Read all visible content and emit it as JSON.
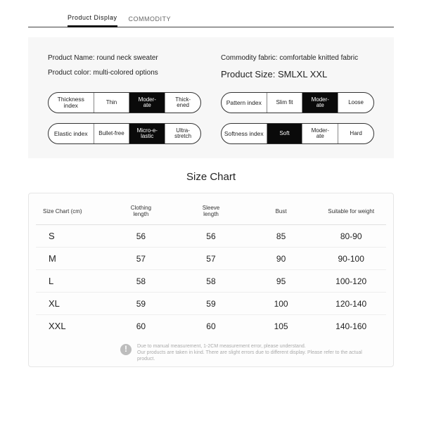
{
  "tabs": {
    "active": "Product Display",
    "inactive": "COMMODITY"
  },
  "info": {
    "name_label": "Product Name:",
    "name_value": "round neck sweater",
    "fabric_label": "Commodity fabric:",
    "fabric_value": "comfortable knitted fabric",
    "color_label": "Product color:",
    "color_value": "multi-colored options",
    "size_label": "Product Size:",
    "size_value": "SMLXL XXL"
  },
  "pills": [
    {
      "label": "Thickness index",
      "opts": [
        "Thin",
        "Moder-\nate",
        "Thick-\nened"
      ],
      "sel": 1
    },
    {
      "label": "Pattern index",
      "opts": [
        "Slim fit",
        "Moder-\nate",
        "Loose"
      ],
      "sel": 1
    },
    {
      "label": "Elastic index",
      "opts": [
        "Bullet-free",
        "Micro-e-\nlastic",
        "Ultra-\nstretch"
      ],
      "sel": 1
    },
    {
      "label": "Softness index",
      "opts": [
        "Soft",
        "Moder-\nate",
        "Hard"
      ],
      "sel": 0
    }
  ],
  "size_chart": {
    "title": "Size Chart",
    "columns": [
      "Size Chart (cm)",
      "Clothing\nlength",
      "Sleeve\nlength",
      "Bust",
      "Suitable for weight"
    ],
    "rows": [
      [
        "S",
        "56",
        "56",
        "85",
        "80-90"
      ],
      [
        "M",
        "57",
        "57",
        "90",
        "90-100"
      ],
      [
        "L",
        "58",
        "58",
        "95",
        "100-120"
      ],
      [
        "XL",
        "59",
        "59",
        "100",
        "120-140"
      ],
      [
        "XXL",
        "60",
        "60",
        "105",
        "140-160"
      ]
    ],
    "note1": "Due to manual measurement, 1-2CM measurement error, please understand.",
    "note2": "Our products are taken in kind. There are slight errors due to different display. Please refer to the actual product.",
    "note_icon": "!"
  }
}
